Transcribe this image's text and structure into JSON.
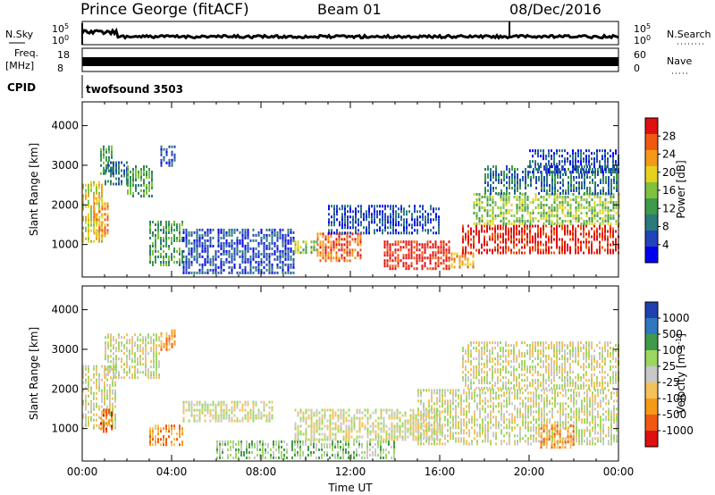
{
  "header": {
    "station": "Prince George (fitACF)",
    "beam": "Beam 01",
    "date": "08/Dec/2016"
  },
  "noise_panel": {
    "left_label": "N.Sky",
    "right_label": "N.Search",
    "left_ticks": [
      "10^5",
      "10^0"
    ],
    "right_ticks": [
      "10^5",
      "10^0"
    ]
  },
  "freq_panel": {
    "left_label_1": "Freq.",
    "left_label_2": "[MHz]",
    "right_label": "Nave",
    "left_ticks": [
      "18",
      "8"
    ],
    "right_ticks": [
      "60",
      "0"
    ]
  },
  "cpid_panel": {
    "label": "CPID",
    "text": "twofsound 3503"
  },
  "x_axis": {
    "label": "Time UT",
    "ticks": [
      "00:00",
      "04:00",
      "08:00",
      "12:00",
      "16:00",
      "20:00",
      "00:00"
    ]
  },
  "colors": {
    "power": [
      "#0000ee",
      "#2244bb",
      "#2c7a7a",
      "#3f9a4a",
      "#7ec23d",
      "#e6d21e",
      "#f59a16",
      "#f05a10",
      "#e01010"
    ],
    "velocity": [
      "#e01010",
      "#f05a10",
      "#f59a16",
      "#f5c15a",
      "#c8c8c8",
      "#9ad860",
      "#3f9a4a",
      "#2f78c0",
      "#2040b0"
    ]
  },
  "chart_data": [
    {
      "type": "heatmap",
      "ylabel": "Slant Range [km]",
      "xlabel": "Time UT",
      "ylim": [
        180,
        4600
      ],
      "yticks": [
        1000,
        2000,
        3000,
        4000
      ],
      "xlim": [
        0,
        24
      ],
      "colorbar_label": "Power [dB]",
      "colorbar_ticks": [
        "28",
        "24",
        "20",
        "16",
        "12",
        "8",
        "4"
      ],
      "regions": [
        {
          "t0": 0.0,
          "t1": 0.9,
          "r0": 1100,
          "r1": 2600,
          "level": 5
        },
        {
          "t0": 0.5,
          "t1": 1.2,
          "r0": 1200,
          "r1": 2200,
          "level": 6
        },
        {
          "t0": 0.8,
          "t1": 1.3,
          "r0": 2800,
          "r1": 3500,
          "level": 3
        },
        {
          "t0": 1.0,
          "t1": 2.0,
          "r0": 2500,
          "r1": 3100,
          "level": 2
        },
        {
          "t0": 2.0,
          "t1": 3.2,
          "r0": 2200,
          "r1": 3000,
          "level": 3
        },
        {
          "t0": 3.5,
          "t1": 4.2,
          "r0": 3000,
          "r1": 3500,
          "level": 1
        },
        {
          "t0": 3.0,
          "t1": 4.5,
          "r0": 500,
          "r1": 1600,
          "level": 3
        },
        {
          "t0": 4.5,
          "t1": 9.5,
          "r0": 250,
          "r1": 1400,
          "level": 1
        },
        {
          "t0": 9.5,
          "t1": 10.5,
          "r0": 800,
          "r1": 1100,
          "level": 4
        },
        {
          "t0": 10.5,
          "t1": 12.5,
          "r0": 600,
          "r1": 1300,
          "level": 7
        },
        {
          "t0": 11.0,
          "t1": 16.0,
          "r0": 1300,
          "r1": 2000,
          "level": 1
        },
        {
          "t0": 13.5,
          "t1": 16.5,
          "r0": 400,
          "r1": 1100,
          "level": 8
        },
        {
          "t0": 16.5,
          "t1": 17.5,
          "r0": 400,
          "r1": 800,
          "level": 6
        },
        {
          "t0": 17.0,
          "t1": 24.0,
          "r0": 800,
          "r1": 1500,
          "level": 8
        },
        {
          "t0": 17.5,
          "t1": 24.0,
          "r0": 1500,
          "r1": 2300,
          "level": 4
        },
        {
          "t0": 18.0,
          "t1": 24.0,
          "r0": 2300,
          "r1": 3000,
          "level": 2
        },
        {
          "t0": 20.0,
          "t1": 24.0,
          "r0": 2800,
          "r1": 3400,
          "level": 1
        }
      ]
    },
    {
      "type": "heatmap",
      "ylabel": "Slant Range [km]",
      "xlabel": "Time UT",
      "ylim": [
        180,
        4600
      ],
      "yticks": [
        1000,
        2000,
        3000,
        4000
      ],
      "xlim": [
        0,
        24
      ],
      "colorbar_label": "Velocity [m s^-1]",
      "colorbar_ticks": [
        "1000",
        "500",
        "100",
        "25",
        "-25",
        "-100",
        "-500",
        "-1000"
      ],
      "regions": [
        {
          "t0": 0.0,
          "t1": 1.5,
          "r0": 1000,
          "r1": 2600,
          "level": 4
        },
        {
          "t0": 0.8,
          "t1": 1.3,
          "r0": 900,
          "r1": 1500,
          "level": 1
        },
        {
          "t0": 1.0,
          "t1": 3.5,
          "r0": 2300,
          "r1": 3400,
          "level": 4
        },
        {
          "t0": 3.0,
          "t1": 4.5,
          "r0": 600,
          "r1": 1100,
          "level": 2
        },
        {
          "t0": 3.5,
          "t1": 4.2,
          "r0": 3000,
          "r1": 3500,
          "level": 2
        },
        {
          "t0": 4.5,
          "t1": 8.5,
          "r0": 1200,
          "r1": 1700,
          "level": 4
        },
        {
          "t0": 6.0,
          "t1": 14.0,
          "r0": 250,
          "r1": 700,
          "level": 5
        },
        {
          "t0": 9.5,
          "t1": 16.0,
          "r0": 700,
          "r1": 1500,
          "level": 4
        },
        {
          "t0": 15.0,
          "t1": 24.0,
          "r0": 600,
          "r1": 2000,
          "level": 4
        },
        {
          "t0": 17.0,
          "t1": 24.0,
          "r0": 2000,
          "r1": 3200,
          "level": 4
        },
        {
          "t0": 20.5,
          "t1": 22.0,
          "r0": 500,
          "r1": 1100,
          "level": 2
        }
      ]
    }
  ]
}
